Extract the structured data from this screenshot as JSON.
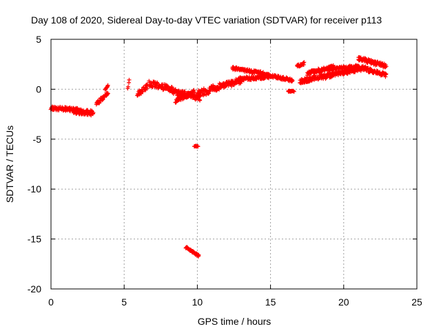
{
  "chart_data": {
    "type": "scatter",
    "title": "Day 108 of 2020, Sidereal Day-to-day VTEC variation (SDTVAR) for receiver p113",
    "xlabel": "GPS time / hours",
    "ylabel": "SDTVAR / TECUs",
    "xlim": [
      0,
      25
    ],
    "ylim": [
      -20,
      5
    ],
    "xticks": [
      0,
      5,
      10,
      15,
      20,
      25
    ],
    "yticks": [
      5,
      0,
      -5,
      -10,
      -15,
      -20
    ],
    "grid": true,
    "marker": "plus",
    "color": "#ff0000",
    "segments": [
      {
        "x_start": 0.0,
        "x_end": 2.0,
        "y_start": -1.9,
        "y_end": -2.1,
        "spread": 0.4
      },
      {
        "x_start": 1.5,
        "x_end": 2.9,
        "y_start": -2.2,
        "y_end": -2.4,
        "spread": 0.5
      },
      {
        "x_start": 3.1,
        "x_end": 3.9,
        "y_start": -1.5,
        "y_end": -0.3,
        "spread": 0.4
      },
      {
        "x_start": 3.7,
        "x_end": 3.9,
        "y_start": 0.0,
        "y_end": 0.3,
        "spread": 0.2
      },
      {
        "x_start": 5.25,
        "x_end": 5.35,
        "y_start": 0.0,
        "y_end": 0.9,
        "spread": 0.3
      },
      {
        "x_start": 5.9,
        "x_end": 6.6,
        "y_start": -0.5,
        "y_end": 0.3,
        "spread": 0.5
      },
      {
        "x_start": 6.7,
        "x_end": 8.3,
        "y_start": 0.6,
        "y_end": 0.0,
        "spread": 0.6
      },
      {
        "x_start": 8.3,
        "x_end": 10.2,
        "y_start": -0.2,
        "y_end": -0.9,
        "spread": 0.6
      },
      {
        "x_start": 8.5,
        "x_end": 9.8,
        "y_start": -1.2,
        "y_end": -0.2,
        "spread": 0.4
      },
      {
        "x_start": 10.0,
        "x_end": 11.5,
        "y_start": -0.5,
        "y_end": 0.3,
        "spread": 0.7
      },
      {
        "x_start": 11.5,
        "x_end": 13.0,
        "y_start": 0.2,
        "y_end": 0.9,
        "spread": 0.6
      },
      {
        "x_start": 12.4,
        "x_end": 14.5,
        "y_start": 2.1,
        "y_end": 1.6,
        "spread": 0.3
      },
      {
        "x_start": 12.8,
        "x_end": 15.0,
        "y_start": 1.0,
        "y_end": 1.3,
        "spread": 0.4
      },
      {
        "x_start": 14.5,
        "x_end": 16.5,
        "y_start": 1.5,
        "y_end": 0.9,
        "spread": 0.3
      },
      {
        "x_start": 16.2,
        "x_end": 16.6,
        "y_start": -0.2,
        "y_end": -0.2,
        "spread": 0.1
      },
      {
        "x_start": 16.8,
        "x_end": 17.3,
        "y_start": 2.3,
        "y_end": 2.6,
        "spread": 0.3
      },
      {
        "x_start": 17.0,
        "x_end": 18.5,
        "y_start": 0.8,
        "y_end": 1.3,
        "spread": 0.5
      },
      {
        "x_start": 17.5,
        "x_end": 19.3,
        "y_start": 1.6,
        "y_end": 2.2,
        "spread": 0.4
      },
      {
        "x_start": 18.5,
        "x_end": 21.5,
        "y_start": 1.2,
        "y_end": 2.2,
        "spread": 0.5
      },
      {
        "x_start": 19.0,
        "x_end": 21.0,
        "y_start": 2.0,
        "y_end": 2.3,
        "spread": 0.3
      },
      {
        "x_start": 21.0,
        "x_end": 22.9,
        "y_start": 3.1,
        "y_end": 2.3,
        "spread": 0.4
      },
      {
        "x_start": 21.5,
        "x_end": 22.9,
        "y_start": 2.0,
        "y_end": 1.4,
        "spread": 0.4
      },
      {
        "x_start": 9.8,
        "x_end": 10.05,
        "y_start": -5.7,
        "y_end": -5.7,
        "spread": 0.1
      },
      {
        "x_start": 9.2,
        "x_end": 10.1,
        "y_start": -15.8,
        "y_end": -16.7,
        "spread": 0.2
      }
    ]
  }
}
